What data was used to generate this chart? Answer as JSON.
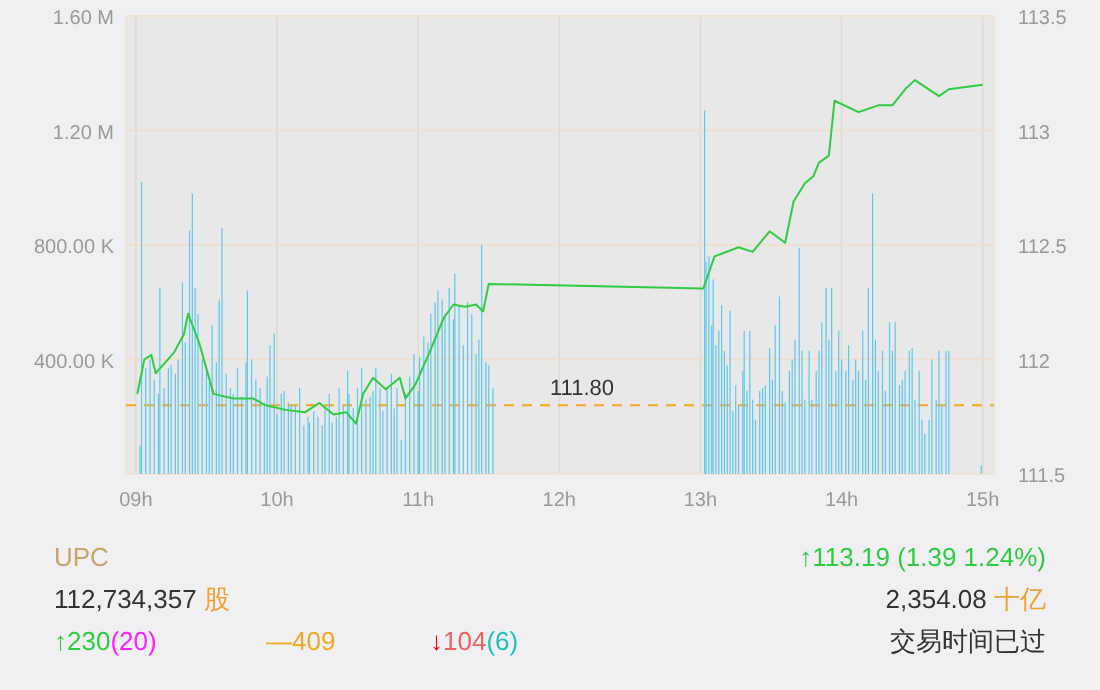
{
  "chart_data": {
    "type": "bar",
    "xlim": [
      8.93,
      15.08
    ],
    "xticks": [
      {
        "value": 9,
        "label": "09h"
      },
      {
        "value": 10,
        "label": "10h"
      },
      {
        "value": 11,
        "label": "11h"
      },
      {
        "value": 12,
        "label": "12h"
      },
      {
        "value": 13,
        "label": "13h"
      },
      {
        "value": 14,
        "label": "14h"
      },
      {
        "value": 15,
        "label": "15h"
      }
    ],
    "ylim": [
      0,
      1600000
    ],
    "yticks": [
      {
        "value": 0,
        "label": null
      },
      {
        "value": 400000,
        "label": "400.00 K"
      },
      {
        "value": 800000,
        "label": "800.00 K"
      },
      {
        "value": 1200000,
        "label": "1.20 M"
      },
      {
        "value": 1600000,
        "label": "1.60 M"
      }
    ],
    "y2lim": [
      111.5,
      113.5
    ],
    "y2ticks": [
      111.5,
      112,
      112.5,
      113,
      113.5
    ],
    "grid": true,
    "series": [
      {
        "color": "#5bc8ef",
        "x": [
          9.03,
          9.04,
          9.07,
          9.1,
          9.13,
          9.16,
          9.17,
          9.2,
          9.23,
          9.25,
          9.28,
          9.3,
          9.33,
          9.35,
          9.38,
          9.4,
          9.42,
          9.44,
          9.47,
          9.5,
          9.52,
          9.54,
          9.57,
          9.59,
          9.61,
          9.64,
          9.67,
          9.69,
          9.72,
          9.75,
          9.78,
          9.79,
          9.82,
          9.85,
          9.88,
          9.91,
          9.93,
          9.95,
          9.98,
          10.0,
          10.03,
          10.05,
          10.08,
          10.1,
          10.13,
          10.16,
          10.19,
          10.22,
          10.23,
          10.26,
          10.29,
          10.32,
          10.34,
          10.37,
          10.39,
          10.42,
          10.44,
          10.47,
          10.5,
          10.51,
          10.54,
          10.57,
          10.6,
          10.63,
          10.66,
          10.68,
          10.7,
          10.73,
          10.75,
          10.78,
          10.81,
          10.83,
          10.85,
          10.88,
          10.91,
          10.94,
          10.97,
          11.0,
          11.01,
          11.04,
          11.07,
          11.09,
          11.12,
          11.14,
          11.17,
          11.19,
          11.22,
          11.25,
          11.26,
          11.29,
          11.32,
          11.35,
          11.38,
          11.41,
          11.43,
          11.45,
          11.48,
          11.5,
          11.53,
          13.03,
          13.04,
          13.06,
          13.08,
          13.09,
          13.11,
          13.13,
          13.15,
          13.17,
          13.19,
          13.21,
          13.23,
          13.25,
          13.27,
          13.3,
          13.31,
          13.33,
          13.35,
          13.37,
          13.39,
          13.42,
          13.44,
          13.46,
          13.49,
          13.51,
          13.53,
          13.56,
          13.58,
          13.6,
          13.63,
          13.65,
          13.67,
          13.7,
          13.72,
          13.74,
          13.77,
          13.79,
          13.82,
          13.84,
          13.86,
          13.89,
          13.91,
          13.93,
          13.96,
          13.98,
          14.0,
          14.03,
          14.05,
          14.08,
          14.1,
          14.12,
          14.15,
          14.17,
          14.19,
          14.22,
          14.24,
          14.26,
          14.29,
          14.31,
          14.34,
          14.36,
          14.38,
          14.41,
          14.43,
          14.45,
          14.48,
          14.5,
          14.52,
          14.55,
          14.57,
          14.59,
          14.62,
          14.64,
          14.67,
          14.69,
          14.71,
          14.74,
          14.76,
          14.99
        ],
        "values": [
          100000,
          1020000,
          370000,
          400000,
          330000,
          280000,
          650000,
          300000,
          370000,
          380000,
          350000,
          400000,
          670000,
          460000,
          850000,
          980000,
          650000,
          560000,
          400000,
          360000,
          320000,
          520000,
          390000,
          610000,
          860000,
          350000,
          300000,
          280000,
          370000,
          270000,
          390000,
          640000,
          400000,
          330000,
          300000,
          250000,
          340000,
          450000,
          490000,
          210000,
          280000,
          290000,
          250000,
          240000,
          240000,
          300000,
          170000,
          200000,
          180000,
          220000,
          200000,
          170000,
          230000,
          280000,
          180000,
          200000,
          300000,
          240000,
          360000,
          280000,
          230000,
          300000,
          370000,
          260000,
          270000,
          290000,
          370000,
          300000,
          220000,
          300000,
          350000,
          230000,
          300000,
          120000,
          280000,
          340000,
          420000,
          290000,
          410000,
          480000,
          460000,
          560000,
          600000,
          640000,
          610000,
          560000,
          650000,
          540000,
          700000,
          590000,
          450000,
          600000,
          560000,
          420000,
          470000,
          800000,
          390000,
          380000,
          300000,
          1270000,
          740000,
          760000,
          520000,
          680000,
          450000,
          500000,
          590000,
          430000,
          380000,
          570000,
          220000,
          310000,
          240000,
          360000,
          500000,
          290000,
          500000,
          260000,
          190000,
          290000,
          300000,
          310000,
          440000,
          330000,
          520000,
          620000,
          290000,
          250000,
          360000,
          400000,
          470000,
          790000,
          430000,
          260000,
          430000,
          260000,
          360000,
          430000,
          530000,
          650000,
          470000,
          650000,
          360000,
          500000,
          400000,
          360000,
          450000,
          330000,
          400000,
          360000,
          500000,
          330000,
          650000,
          980000,
          470000,
          360000,
          430000,
          290000,
          530000,
          430000,
          530000,
          310000,
          330000,
          360000,
          430000,
          440000,
          260000,
          360000,
          190000,
          140000,
          190000,
          400000,
          260000,
          430000,
          240000,
          430000,
          430000,
          30000
        ]
      },
      {
        "type": "line",
        "axis": "y2",
        "color": "#2ecc40",
        "x": [
          9.01,
          9.06,
          9.11,
          9.14,
          9.27,
          9.34,
          9.37,
          9.45,
          9.55,
          9.69,
          9.83,
          9.92,
          10.06,
          10.2,
          10.3,
          10.4,
          10.49,
          10.56,
          10.61,
          10.68,
          10.77,
          10.87,
          10.91,
          10.98,
          11.08,
          11.18,
          11.25,
          11.33,
          11.41,
          11.46,
          11.5,
          13.02,
          13.1,
          13.27,
          13.37,
          13.49,
          13.6,
          13.66,
          13.74,
          13.8,
          13.84,
          13.91,
          13.95,
          14.12,
          14.26,
          14.36,
          14.45,
          14.52,
          14.69,
          14.76,
          15.0
        ],
        "values": [
          111.85,
          112.0,
          112.02,
          111.94,
          112.03,
          112.11,
          112.2,
          112.07,
          111.85,
          111.83,
          111.83,
          111.8,
          111.78,
          111.77,
          111.81,
          111.76,
          111.77,
          111.72,
          111.85,
          111.92,
          111.87,
          111.92,
          111.83,
          111.89,
          112.03,
          112.18,
          112.24,
          112.23,
          112.24,
          112.21,
          112.33,
          112.31,
          112.45,
          112.49,
          112.47,
          112.56,
          112.51,
          112.69,
          112.77,
          112.8,
          112.86,
          112.89,
          113.13,
          113.08,
          113.11,
          113.11,
          113.18,
          113.22,
          113.15,
          113.18,
          113.2
        ]
      }
    ],
    "ref_lines": [
      {
        "axis": "y2",
        "value": 111.8,
        "label": "111.80",
        "color": "#f5a623",
        "line_style": "dashed"
      }
    ],
    "annotations": [
      "UPC",
      "↑113.19 (1.39 1.24%)",
      "112,734,357",
      "股",
      "2,354.08",
      "十亿",
      "↑",
      "230",
      "(20)",
      "—409",
      "↓",
      "104",
      "(6)",
      "交易时间已过"
    ]
  }
}
